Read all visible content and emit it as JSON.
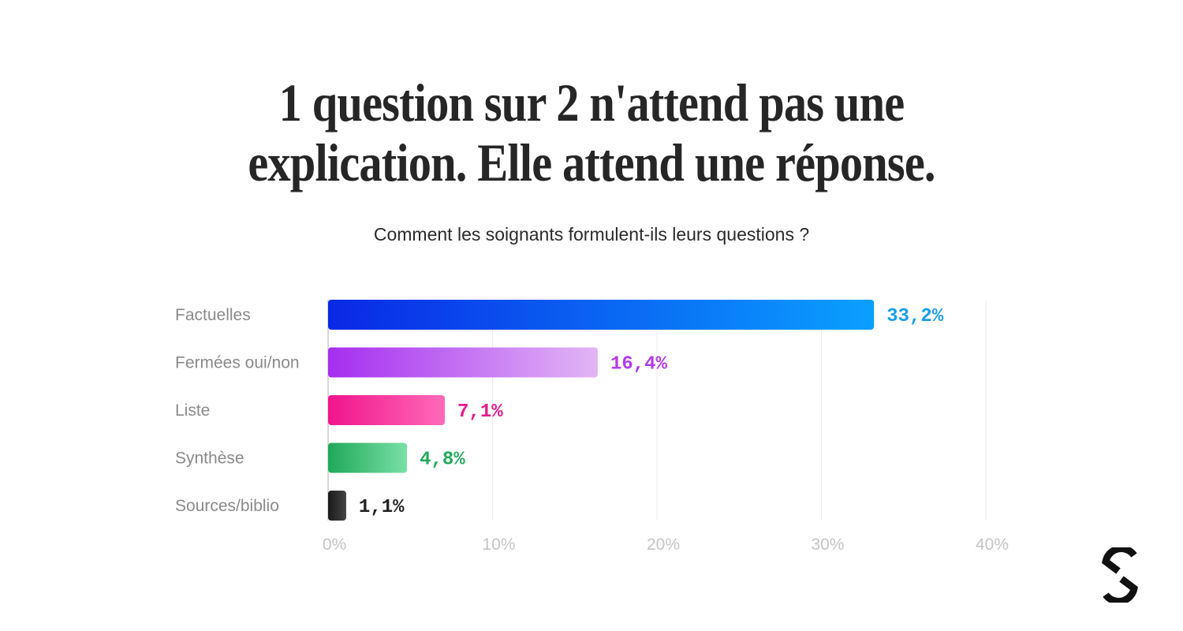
{
  "header": {
    "title_line1": "1 question sur 2 n'attend pas une",
    "title_line2": "explication. Elle attend une réponse.",
    "subtitle": "Comment les soignants formulent-ils leurs questions ?"
  },
  "chart_data": {
    "type": "bar",
    "orientation": "horizontal",
    "title": "Comment les soignants formulent-ils leurs questions ?",
    "categories": [
      "Factuelles",
      "Fermées oui/non",
      "Liste",
      "Synthèse",
      "Sources/biblio"
    ],
    "values": [
      33.2,
      16.4,
      7.1,
      4.8,
      1.1
    ],
    "value_labels": [
      "33,2%",
      "16,4%",
      "7,1%",
      "4,8%",
      "1,1%"
    ],
    "xlim": [
      0,
      40
    ],
    "x_ticks": [
      0,
      10,
      20,
      30,
      40
    ],
    "x_tick_labels": [
      "0%",
      "10%",
      "20%",
      "30%",
      "40%"
    ],
    "grid": true,
    "colors": [
      {
        "start": "#0a28e6",
        "end": "#0aa0ff",
        "label": "#1a9ee8"
      },
      {
        "start": "#a52ef0",
        "end": "#e2b6f5",
        "label": "#b23af0"
      },
      {
        "start": "#f0148c",
        "end": "#ff6ab8",
        "label": "#e61a8c"
      },
      {
        "start": "#1fa85a",
        "end": "#7ae0a6",
        "label": "#22aa5a"
      },
      {
        "start": "#1a1a1a",
        "end": "#444444",
        "label": "#222222"
      }
    ]
  },
  "logo": {
    "icon": "brand-logo-icon",
    "color": "#111111"
  }
}
